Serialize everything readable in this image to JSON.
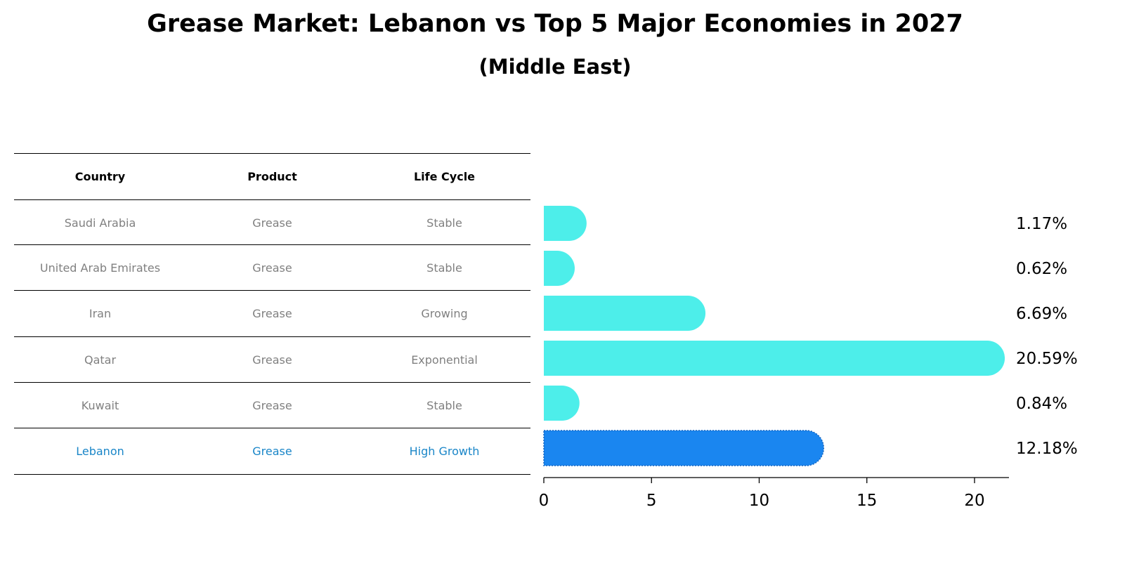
{
  "title": "Grease Market: Lebanon vs Top 5 Major Economies in 2027",
  "subtitle": "(Middle East)",
  "table": {
    "headers": [
      "Country",
      "Product",
      "Life Cycle"
    ],
    "rows": [
      [
        "Saudi Arabia",
        "Grease",
        "Stable"
      ],
      [
        "United Arab Emirates",
        "Grease",
        "Stable"
      ],
      [
        "Iran",
        "Grease",
        "Growing"
      ],
      [
        "Qatar",
        "Grease",
        "Exponential"
      ],
      [
        "Kuwait",
        "Grease",
        "Stable"
      ],
      [
        "Lebanon",
        "Grease",
        "High Growth"
      ]
    ],
    "highlight_row": 5
  },
  "chart_data": {
    "type": "bar",
    "orientation": "horizontal",
    "categories": [
      "Saudi Arabia",
      "United Arab Emirates",
      "Iran",
      "Qatar",
      "Kuwait",
      "Lebanon"
    ],
    "values": [
      1.17,
      0.62,
      6.69,
      20.59,
      0.84,
      12.18
    ],
    "value_labels": [
      "1.17%",
      "0.62%",
      "6.69%",
      "20.59%",
      "0.84%",
      "12.18%"
    ],
    "xlim": [
      0,
      21.6
    ],
    "xticks": [
      "0",
      "5",
      "10",
      "15",
      "20"
    ],
    "grid": false,
    "colors": {
      "default": "#4deeea",
      "highlight": "#1a86f0"
    },
    "highlight_index": 5
  }
}
